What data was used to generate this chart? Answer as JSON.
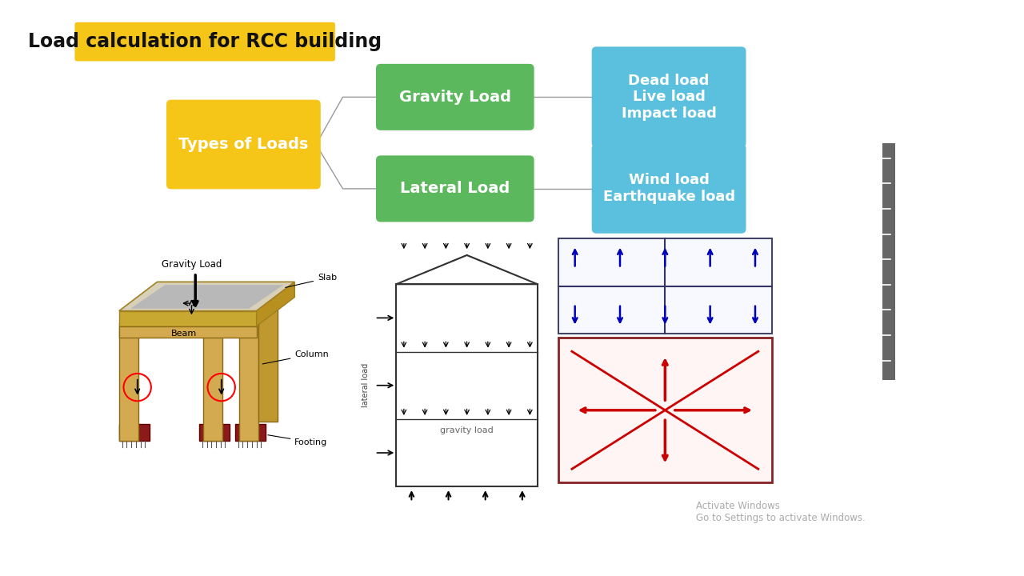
{
  "title": "Load calculation for RCC building",
  "title_bg": "#F5C518",
  "title_fontsize": 17,
  "title_fontweight": "bold",
  "bg_color": "#FFFFFF",
  "box_types_label": "Types of Loads",
  "box_types_color": "#F5C518",
  "box_types_text_color": "#FFFFFF",
  "box_gravity_label": "Gravity Load",
  "box_gravity_color": "#5CB85C",
  "box_gravity_text_color": "#FFFFFF",
  "box_lateral_label": "Lateral Load",
  "box_lateral_color": "#5CB85C",
  "box_lateral_text_color": "#FFFFFF",
  "box_dead_label": "Dead load\nLive load\nImpact load",
  "box_dead_color": "#5BC0DE",
  "box_dead_text_color": "#FFFFFF",
  "box_wind_label": "Wind load\nEarthquake load",
  "box_wind_color": "#5BC0DE",
  "box_wind_text_color": "#FFFFFF",
  "line_color": "#999999",
  "bottom_caption": "Activate Windows\nGo to Settings to activate Windows."
}
